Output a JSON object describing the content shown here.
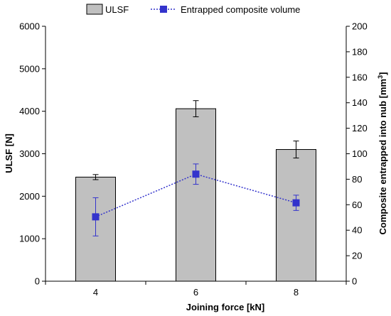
{
  "chart_data": {
    "type": "bar",
    "categories": [
      "4",
      "6",
      "8"
    ],
    "xlabel": "Joining force [kN]",
    "ylabel": "ULSF [N]",
    "ylabel_right_main": "Composite entrapped into nub [mm",
    "ylabel_right_sup": "3",
    "ylabel_right_end": "]",
    "ylim": [
      0,
      6000
    ],
    "yticks": [
      0,
      1000,
      2000,
      3000,
      4000,
      5000,
      6000
    ],
    "y2lim": [
      0,
      200
    ],
    "y2ticks": [
      0,
      20,
      40,
      60,
      80,
      100,
      120,
      140,
      160,
      180,
      200
    ],
    "grid": false,
    "legend_position": "top-center",
    "series": [
      {
        "name": "ULSF",
        "type": "bar",
        "axis": "left",
        "values": [
          2450,
          4060,
          3100
        ],
        "errors": [
          60,
          190,
          200
        ],
        "color": "#c0c0c0",
        "edge_color": "#000000"
      },
      {
        "name": "Entrapped composite volume",
        "type": "line",
        "axis": "right",
        "values": [
          50.5,
          84,
          61.5
        ],
        "errors": [
          15,
          8,
          6
        ],
        "color": "#3333cc",
        "line_style": "dotted",
        "marker": "square"
      }
    ]
  }
}
